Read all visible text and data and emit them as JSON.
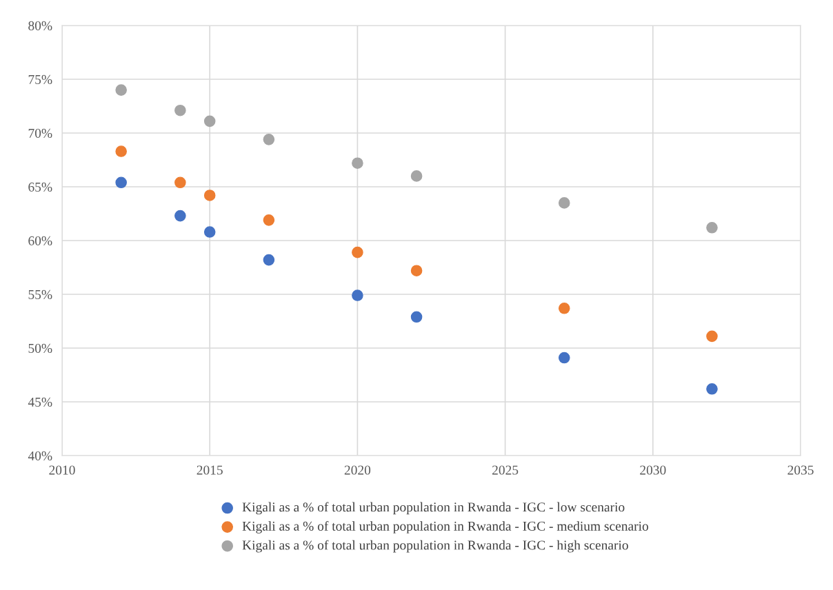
{
  "chart_data": {
    "type": "scatter",
    "x": [
      2012,
      2014,
      2015,
      2017,
      2020,
      2022,
      2027,
      2032
    ],
    "series": [
      {
        "name": "Kigali as a % of total urban population in Rwanda - IGC - low scenario",
        "color": "#4472c4",
        "values": [
          65.4,
          62.3,
          60.8,
          58.2,
          54.9,
          52.9,
          49.1,
          46.2
        ]
      },
      {
        "name": "Kigali as a % of total urban population in Rwanda - IGC - medium scenario",
        "color": "#ed7d31",
        "values": [
          68.3,
          65.4,
          64.2,
          61.9,
          58.9,
          57.2,
          53.7,
          51.1
        ]
      },
      {
        "name": "Kigali as a % of total urban population in Rwanda - IGC - high scenario",
        "color": "#a5a5a5",
        "values": [
          74.0,
          72.1,
          71.1,
          69.4,
          67.2,
          66.0,
          63.5,
          61.2
        ]
      }
    ],
    "xlim": [
      2010,
      2035
    ],
    "xticks": [
      2010,
      2015,
      2020,
      2025,
      2030,
      2035
    ],
    "ylim": [
      40,
      80
    ],
    "yticks": [
      {
        "value": 40,
        "label": "40%"
      },
      {
        "value": 45,
        "label": "45%"
      },
      {
        "value": 50,
        "label": "50%"
      },
      {
        "value": 55,
        "label": "55%"
      },
      {
        "value": 60,
        "label": "60%"
      },
      {
        "value": 65,
        "label": "65%"
      },
      {
        "value": 70,
        "label": "70%"
      },
      {
        "value": 75,
        "label": "75%"
      },
      {
        "value": 80,
        "label": "80%"
      }
    ],
    "grid": true,
    "legend": "bottom",
    "marker": "circle"
  }
}
